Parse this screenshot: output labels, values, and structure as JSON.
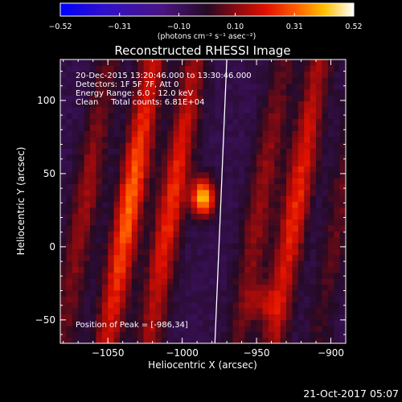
{
  "chart_data": {
    "type": "heatmap",
    "title": "Reconstructed RHESSI Image",
    "xlabel": "Heliocentric X (arcsec)",
    "ylabel": "Heliocentric Y (arcsec)",
    "xlim": [
      -1082,
      -890
    ],
    "ylim": [
      -66,
      128
    ],
    "x_ticks": [
      -1050,
      -1000,
      -950,
      -900
    ],
    "x_tick_labels": [
      "−1050",
      "−1000",
      "−950",
      "−900"
    ],
    "y_ticks": [
      -50,
      0,
      50,
      100
    ],
    "y_tick_labels": [
      "−50",
      "0",
      "50",
      "100"
    ],
    "colorbar": {
      "units_label": "(photons cm⁻² s⁻¹ asec⁻²)",
      "range": [
        -0.52,
        0.52
      ],
      "tick_values": [
        -0.52,
        -0.31,
        -0.1,
        0.1,
        0.31,
        0.52
      ],
      "tick_labels": [
        "−0.52",
        "−0.31",
        "−0.10",
        "0.10",
        "0.31",
        "0.52"
      ]
    },
    "annotations": {
      "time_range": "20-Dec-2015 13:20:46.000 to 13:30:46.000",
      "detectors": "Detectors: 1F 5F 7F, Att 0",
      "energy_range": "Energy Range: 6.0 - 12.0 keV",
      "clean_counts": "Clean     Total counts: 6.81E+04",
      "peak_position": "Position of Peak = [-986,34]"
    },
    "peak": {
      "x": -986,
      "y": 34
    },
    "fringes": [
      {
        "x_at_y0": -1070,
        "amplitude": 0.18
      },
      {
        "x_at_y0": -1040,
        "amplitude": 0.38
      },
      {
        "x_at_y0": -1012,
        "amplitude": 0.3
      },
      {
        "x_at_y0": -952,
        "amplitude": 0.18
      },
      {
        "x_at_y0": -928,
        "amplitude": 0.3
      },
      {
        "x_at_y0": -898,
        "amplitude": 0.12
      }
    ],
    "limb_line": [
      [
        -978,
        -66
      ],
      [
        -970,
        128
      ]
    ]
  },
  "footer": {
    "timestamp": "21-Oct-2017 05:07"
  }
}
